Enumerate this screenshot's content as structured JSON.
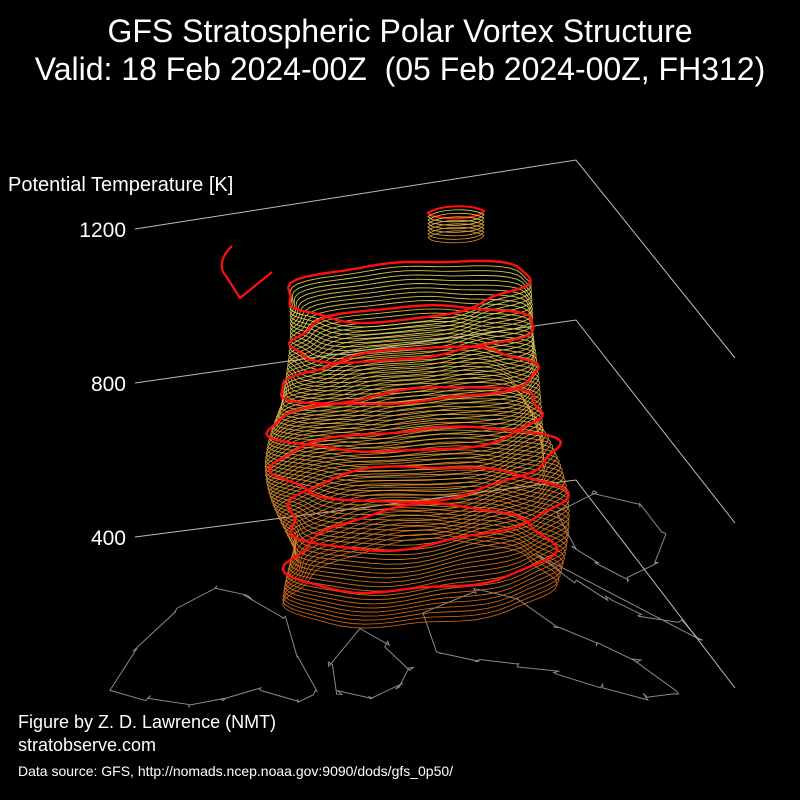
{
  "title_line1": "GFS Stratospheric Polar Vortex Structure",
  "title_line2": "Valid: 18 Feb 2024-00Z  (05 Feb 2024-00Z, FH312)",
  "credit_author": "Figure by Z. D. Lawrence (NMT)",
  "credit_site": "stratobserve.com",
  "credit_source": "Data source: GFS, http://nomads.ncep.noaa.gov:9090/dods/gfs_0p50/",
  "colors": {
    "background": "#000000",
    "highlight_contour": "#ff1010",
    "contour_high": "#e8e060",
    "contour_low": "#d86a18",
    "map_lines": "#8a8a8a",
    "axis_lines": "#bbbbbb"
  },
  "chart_data": {
    "type": "3d-isosurface",
    "zlabel": "Potential Temperature [K]",
    "z_ticks": [
      400,
      800,
      1200
    ],
    "zlim": [
      300,
      1300
    ],
    "grid": true,
    "highlighted_levels_count": 7,
    "base_map": "Northern Hemisphere coastlines"
  }
}
